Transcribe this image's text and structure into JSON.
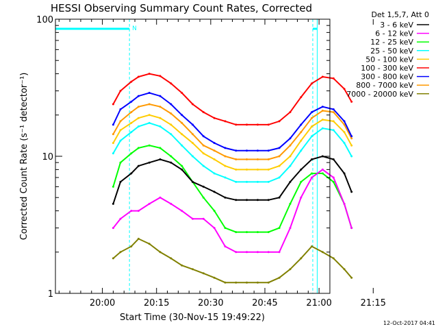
{
  "chart_data": {
    "type": "line",
    "title": "HESSI Observing Summary Count Rates, Corrected",
    "xlabel": "Start Time (30-Nov-15 19:49:22)",
    "ylabel": "Corrected Count Rate (s⁻¹ detector⁻¹)",
    "y_scale": "log",
    "ylim": [
      1,
      100
    ],
    "xlim_minutes": [
      -13,
      63
    ],
    "x_tick_labels": [
      "20:00",
      "20:15",
      "20:30",
      "20:45",
      "21:00",
      "21:15"
    ],
    "x_tick_minutes": [
      0,
      15,
      30,
      45,
      60,
      75
    ],
    "y_tick_labels": [
      "1",
      "10",
      "100"
    ],
    "y_tick_values": [
      1,
      10,
      100
    ],
    "legend_header": "Det 1,5,7, Att 0",
    "legend_placement": "right",
    "night_marker_label": "N",
    "night_markers": [
      {
        "start_min": 7.5,
        "end_min": 59.5
      }
    ],
    "series": [
      {
        "name": "3 - 6 keV",
        "color": "#000000",
        "x": [
          3,
          5,
          8,
          10,
          13,
          16,
          19,
          22,
          25,
          28,
          31,
          34,
          37,
          40,
          43,
          46,
          49,
          52,
          55,
          58,
          61,
          64,
          67,
          69
        ],
        "y": [
          4.5,
          6.5,
          7.5,
          8.5,
          9.0,
          9.5,
          9.0,
          8.0,
          6.5,
          6.0,
          5.5,
          5.0,
          4.8,
          4.8,
          4.8,
          4.8,
          5.0,
          6.5,
          8.0,
          9.5,
          10.0,
          9.5,
          7.5,
          5.5
        ]
      },
      {
        "name": "6 - 12 keV",
        "color": "#ff00ff",
        "x": [
          3,
          5,
          8,
          10,
          13,
          16,
          19,
          22,
          25,
          28,
          31,
          34,
          37,
          40,
          43,
          46,
          49,
          52,
          55,
          58,
          61,
          64,
          67,
          69
        ],
        "y": [
          3.0,
          3.5,
          4.0,
          4.0,
          4.5,
          5.0,
          4.5,
          4.0,
          3.5,
          3.5,
          3.0,
          2.2,
          2.0,
          2.0,
          2.0,
          2.0,
          2.0,
          3.0,
          5.0,
          7.0,
          8.0,
          7.0,
          4.5,
          3.0
        ]
      },
      {
        "name": "12 - 25 keV",
        "color": "#00ff00",
        "x": [
          3,
          5,
          8,
          10,
          13,
          16,
          19,
          22,
          25,
          28,
          31,
          34,
          37,
          40,
          43,
          46,
          49,
          52,
          55,
          58,
          61,
          64,
          67,
          69
        ],
        "y": [
          6.0,
          9.0,
          10.5,
          11.5,
          12.0,
          11.5,
          10.0,
          8.5,
          6.5,
          5.0,
          4.0,
          3.0,
          2.8,
          2.8,
          2.8,
          2.8,
          3.0,
          4.5,
          6.5,
          7.5,
          7.5,
          6.5,
          4.5,
          3.0
        ]
      },
      {
        "name": "25 - 50 keV",
        "color": "#00ffff",
        "x": [
          3,
          5,
          8,
          10,
          13,
          16,
          19,
          22,
          25,
          28,
          31,
          34,
          37,
          40,
          43,
          46,
          49,
          52,
          55,
          58,
          61,
          64,
          67,
          69
        ],
        "y": [
          10.5,
          13.0,
          15.0,
          16.5,
          17.5,
          16.5,
          14.5,
          12.0,
          10.0,
          8.5,
          7.5,
          7.0,
          6.5,
          6.5,
          6.5,
          6.5,
          7.0,
          8.5,
          11.0,
          14.0,
          16.0,
          15.5,
          12.5,
          10.0
        ]
      },
      {
        "name": "50 - 100 keV",
        "color": "#ffcc00",
        "x": [
          3,
          5,
          8,
          10,
          13,
          16,
          19,
          22,
          25,
          28,
          31,
          34,
          37,
          40,
          43,
          46,
          49,
          52,
          55,
          58,
          61,
          64,
          67,
          69
        ],
        "y": [
          12.5,
          15.5,
          17.5,
          19.0,
          20.0,
          19.0,
          17.0,
          14.5,
          12.5,
          10.5,
          9.5,
          8.5,
          8.0,
          8.0,
          8.0,
          8.0,
          8.5,
          10.0,
          13.0,
          16.5,
          18.5,
          18.0,
          15.0,
          12.0
        ]
      },
      {
        "name": "100 - 300 keV",
        "color": "#ff0000",
        "x": [
          3,
          5,
          8,
          10,
          13,
          16,
          19,
          22,
          25,
          28,
          31,
          34,
          37,
          40,
          43,
          46,
          49,
          52,
          55,
          58,
          61,
          64,
          67,
          69
        ],
        "y": [
          24.0,
          30.0,
          35.0,
          38.0,
          40.0,
          38.5,
          34.0,
          29.0,
          24.0,
          21.0,
          19.0,
          18.0,
          17.0,
          17.0,
          17.0,
          17.0,
          18.0,
          21.0,
          27.0,
          34.0,
          38.0,
          37.0,
          31.0,
          25.0
        ]
      },
      {
        "name": "300 - 800 keV",
        "color": "#0000ff",
        "x": [
          3,
          5,
          8,
          10,
          13,
          16,
          19,
          22,
          25,
          28,
          31,
          34,
          37,
          40,
          43,
          46,
          49,
          52,
          55,
          58,
          61,
          64,
          67,
          69
        ],
        "y": [
          17.0,
          22.0,
          25.0,
          27.5,
          29.0,
          27.5,
          24.0,
          20.0,
          17.0,
          14.0,
          12.5,
          11.5,
          11.0,
          11.0,
          11.0,
          11.0,
          11.5,
          13.5,
          17.0,
          21.0,
          23.0,
          22.0,
          18.0,
          14.0
        ]
      },
      {
        "name": "800 - 7000 keV",
        "color": "#ff9900",
        "x": [
          3,
          5,
          8,
          10,
          13,
          16,
          19,
          22,
          25,
          28,
          31,
          34,
          37,
          40,
          43,
          46,
          49,
          52,
          55,
          58,
          61,
          64,
          67,
          69
        ],
        "y": [
          14.5,
          18.0,
          21.0,
          23.0,
          24.0,
          23.0,
          20.5,
          17.5,
          14.5,
          12.0,
          11.0,
          10.0,
          9.5,
          9.5,
          9.5,
          9.5,
          10.0,
          12.0,
          15.0,
          19.0,
          21.5,
          21.0,
          17.0,
          13.5
        ]
      },
      {
        "name": "7000 - 20000 keV",
        "color": "#808000",
        "x": [
          3,
          5,
          8,
          10,
          13,
          16,
          19,
          22,
          25,
          28,
          31,
          34,
          37,
          40,
          43,
          46,
          49,
          52,
          55,
          58,
          61,
          64,
          67,
          69
        ],
        "y": [
          1.8,
          2.0,
          2.2,
          2.5,
          2.3,
          2.0,
          1.8,
          1.6,
          1.5,
          1.4,
          1.3,
          1.2,
          1.2,
          1.2,
          1.2,
          1.2,
          1.3,
          1.5,
          1.8,
          2.2,
          2.0,
          1.8,
          1.5,
          1.3
        ]
      }
    ]
  },
  "footer": {
    "timestamp": "12-Oct-2017 04:41"
  }
}
